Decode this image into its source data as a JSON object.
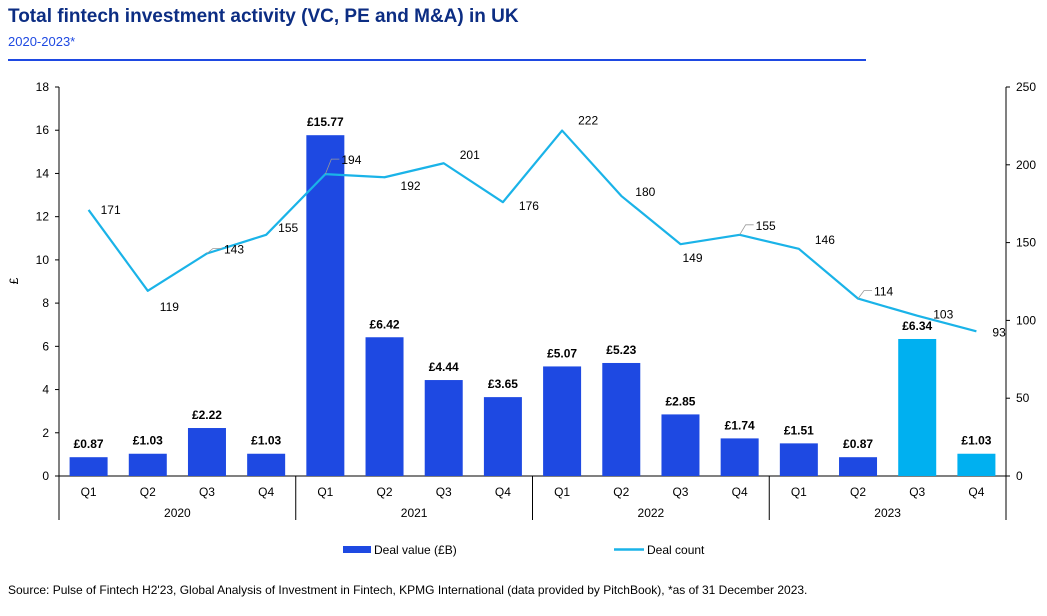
{
  "header": {
    "title": "Total fintech investment activity (VC, PE and M&A) in UK",
    "subtitle": "2020-2023*"
  },
  "source": "Source: Pulse of Fintech H2'23, Global Analysis of Investment in Fintech, KPMG International (data provided by PitchBook), *as of 31 December 2023.",
  "colors": {
    "bar": "#1e49e2",
    "bar_highlight": "#00b0f0",
    "line": "#1ab3e8",
    "title": "#0c2d83"
  },
  "chart_data": {
    "type": "bar",
    "title": "Total fintech investment activity (VC, PE and M&A) in UK",
    "subtitle": "2020-2023*",
    "categories": [
      "Q1",
      "Q2",
      "Q3",
      "Q4",
      "Q1",
      "Q2",
      "Q3",
      "Q4",
      "Q1",
      "Q2",
      "Q3",
      "Q4",
      "Q1",
      "Q2",
      "Q3",
      "Q4"
    ],
    "groups": [
      {
        "label": "2020",
        "count": 4
      },
      {
        "label": "2021",
        "count": 4
      },
      {
        "label": "2022",
        "count": 4
      },
      {
        "label": "2023",
        "count": 4
      }
    ],
    "series": [
      {
        "name": "Deal value (£B)",
        "type": "bar",
        "axis": "left",
        "values": [
          0.87,
          1.03,
          2.22,
          1.03,
          15.77,
          6.42,
          4.44,
          3.65,
          5.07,
          5.23,
          2.85,
          1.74,
          1.51,
          0.87,
          6.34,
          1.03
        ],
        "labels": [
          "£0.87",
          "£1.03",
          "£2.22",
          "£1.03",
          "£15.77",
          "£6.42",
          "£4.44",
          "£3.65",
          "£5.07",
          "£5.23",
          "£2.85",
          "£1.74",
          "£1.51",
          "£0.87",
          "£6.34",
          "£1.03"
        ],
        "highlighted_indices": [
          14,
          15
        ]
      },
      {
        "name": "Deal count",
        "type": "line",
        "axis": "right",
        "values": [
          171,
          119,
          143,
          155,
          194,
          192,
          201,
          176,
          222,
          180,
          149,
          155,
          146,
          114,
          103,
          93
        ]
      }
    ],
    "ylabel": "£",
    "ylim": [
      0,
      18
    ],
    "yticks": [
      0,
      2,
      4,
      6,
      8,
      10,
      12,
      14,
      16,
      18
    ],
    "y2lim": [
      0,
      250
    ],
    "y2ticks": [
      0,
      50,
      100,
      150,
      200,
      250
    ],
    "grid": false,
    "legend": {
      "position": "bottom",
      "entries": [
        "Deal value (£B)",
        "Deal count"
      ]
    }
  }
}
